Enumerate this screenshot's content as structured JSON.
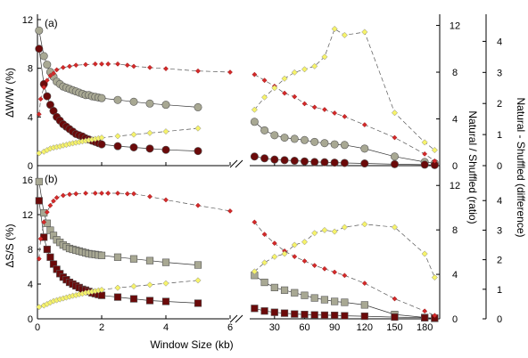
{
  "chart_data": {
    "type": "scatter",
    "xlabel": "Window Size (kb)",
    "x_ticks_left": [
      "0",
      "2",
      "4",
      "6"
    ],
    "x_ticks_right": [
      "30",
      "60",
      "90",
      "120",
      "150",
      "180"
    ],
    "x_ticks_right_top": [
      "30",
      "60",
      "90",
      "120",
      "150",
      "180"
    ],
    "left_x_range": [
      0,
      6
    ],
    "right_x_range": [
      7,
      195
    ],
    "right_axis_label_1": "Natural / Shuffled  (ratio)",
    "right_axis_label_2": "Natural - Shuffled  (difference)",
    "colors": {
      "grey_circle": "#a8a893",
      "dark_red": "#6b0a0a",
      "red": "#d42a2a",
      "yellow": "#f6f36a"
    },
    "panels": [
      {
        "label": "(a)",
        "ylabel": "ΔW/W  (%)",
        "ylim": [
          0,
          12
        ],
        "yticks": [
          "0",
          "4",
          "8",
          "12"
        ],
        "ratio_ticks": [
          "0",
          "4",
          "8",
          "12"
        ],
        "ratio_range": [
          0,
          12.5
        ],
        "diff_ticks": [
          "0",
          "1",
          "2",
          "3",
          "4"
        ],
        "diff_range": [
          0,
          4.7
        ],
        "series": [
          {
            "marker": "circle",
            "color": "grey",
            "left_x": [
              0.05,
              0.2,
              0.3,
              0.4,
              0.5,
              0.6,
              0.7,
              0.8,
              0.9,
              1.0,
              1.1,
              1.2,
              1.3,
              1.4,
              1.5,
              1.6,
              1.7,
              1.8,
              1.9,
              2.0,
              2.5,
              3.0,
              3.5,
              4.0,
              5.0
            ],
            "left_y": [
              11.1,
              9.0,
              8.3,
              7.7,
              7.3,
              6.9,
              6.7,
              6.5,
              6.4,
              6.3,
              6.2,
              6.1,
              6.0,
              5.9,
              5.8,
              5.8,
              5.7,
              5.65,
              5.6,
              5.55,
              5.4,
              5.25,
              5.1,
              5.0,
              4.8
            ],
            "right_x": [
              10,
              20,
              30,
              40,
              50,
              60,
              70,
              80,
              90,
              100,
              120,
              150,
              180,
              190
            ],
            "right_y": [
              3.6,
              2.9,
              2.5,
              2.3,
              2.2,
              2.1,
              1.95,
              1.85,
              1.75,
              1.7,
              1.4,
              0.75,
              0.3,
              0.2
            ]
          },
          {
            "marker": "circle",
            "color": "dark_red",
            "left_x": [
              0.05,
              0.2,
              0.3,
              0.4,
              0.5,
              0.6,
              0.7,
              0.8,
              0.9,
              1.0,
              1.1,
              1.2,
              1.3,
              1.4,
              1.5,
              1.6,
              1.7,
              1.8,
              1.9,
              2.0,
              2.5,
              3.0,
              3.5,
              4.0,
              5.0
            ],
            "left_y": [
              9.6,
              6.7,
              5.7,
              5.0,
              4.5,
              4.0,
              3.7,
              3.4,
              3.2,
              3.0,
              2.8,
              2.6,
              2.5,
              2.4,
              2.25,
              2.15,
              2.05,
              1.95,
              1.85,
              1.75,
              1.6,
              1.5,
              1.4,
              1.3,
              1.2
            ],
            "right_x": [
              10,
              20,
              30,
              40,
              50,
              60,
              70,
              80,
              90,
              100,
              120,
              150,
              180,
              190
            ],
            "right_y": [
              0.75,
              0.6,
              0.5,
              0.45,
              0.4,
              0.35,
              0.3,
              0.28,
              0.25,
              0.22,
              0.18,
              0.12,
              0.08,
              0.05
            ]
          },
          {
            "marker": "diamond",
            "color": "red",
            "scale": "ratio",
            "left_x": [
              0.05,
              0.1,
              0.2,
              0.3,
              0.4,
              0.5,
              0.6,
              0.8,
              1.0,
              1.2,
              1.5,
              1.8,
              2.0,
              2.2,
              2.5,
              2.8,
              3.0,
              3.5,
              4.0,
              5.0,
              6.0
            ],
            "left_y": [
              4.4,
              5.7,
              6.7,
              7.3,
              7.7,
              7.9,
              8.2,
              8.4,
              8.5,
              8.6,
              8.65,
              8.7,
              8.7,
              8.7,
              8.7,
              8.6,
              8.5,
              8.4,
              8.3,
              8.1,
              8.0
            ],
            "right_x": [
              10,
              20,
              30,
              40,
              50,
              60,
              70,
              80,
              90,
              100,
              120,
              150,
              180,
              190
            ],
            "right_y": [
              7.8,
              7.3,
              6.8,
              6.2,
              5.9,
              5.3,
              5.0,
              4.8,
              4.5,
              4.2,
              3.5,
              2.4,
              1.0,
              0.4
            ]
          },
          {
            "marker": "diamond",
            "color": "yellow",
            "scale": "diff",
            "left_x": [
              0.05,
              0.2,
              0.3,
              0.4,
              0.5,
              0.6,
              0.7,
              0.8,
              0.9,
              1.0,
              1.1,
              1.2,
              1.3,
              1.4,
              1.5,
              1.6,
              1.7,
              1.8,
              1.9,
              2.0,
              2.5,
              3.0,
              3.5,
              4.0,
              5.0
            ],
            "left_y": [
              0.4,
              0.45,
              0.5,
              0.55,
              0.58,
              0.6,
              0.62,
              0.65,
              0.67,
              0.7,
              0.72,
              0.74,
              0.76,
              0.78,
              0.8,
              0.82,
              0.84,
              0.86,
              0.88,
              0.9,
              0.95,
              1.0,
              1.05,
              1.1,
              1.2
            ],
            "right_x": [
              10,
              20,
              30,
              40,
              50,
              60,
              70,
              80,
              90,
              100,
              120,
              150,
              180,
              190
            ],
            "right_y": [
              1.8,
              2.2,
              2.5,
              2.8,
              3.0,
              3.1,
              3.2,
              3.5,
              4.4,
              4.2,
              4.3,
              1.7,
              0.75,
              0.5
            ]
          }
        ]
      },
      {
        "label": "(b)",
        "ylabel": "ΔS/S  (%)",
        "ylim": [
          0,
          16
        ],
        "yticks": [
          "0",
          "4",
          "8",
          "12",
          "16"
        ],
        "ratio_ticks": [
          "0",
          "4",
          "8",
          "12"
        ],
        "ratio_range": [
          0,
          12.5
        ],
        "diff_ticks": [
          "0",
          "1",
          "2",
          "3",
          "4"
        ],
        "diff_range": [
          0,
          4.7
        ],
        "series": [
          {
            "marker": "square",
            "color": "grey",
            "left_x": [
              0.05,
              0.2,
              0.3,
              0.4,
              0.5,
              0.6,
              0.7,
              0.8,
              0.9,
              1.0,
              1.1,
              1.2,
              1.3,
              1.4,
              1.5,
              1.6,
              1.7,
              1.8,
              1.9,
              2.0,
              2.5,
              3.0,
              3.5,
              4.0,
              5.0
            ],
            "left_y": [
              15.8,
              12.2,
              11.0,
              10.2,
              9.6,
              9.1,
              8.8,
              8.5,
              8.3,
              8.1,
              8.0,
              7.9,
              7.8,
              7.7,
              7.6,
              7.5,
              7.45,
              7.4,
              7.35,
              7.3,
              7.1,
              6.9,
              6.7,
              6.5,
              6.2
            ],
            "right_x": [
              10,
              20,
              30,
              40,
              50,
              60,
              70,
              80,
              90,
              100,
              120,
              150,
              180,
              190
            ],
            "right_y": [
              5.0,
              4.2,
              3.6,
              3.3,
              3.0,
              2.7,
              2.4,
              2.2,
              2.0,
              1.9,
              1.6,
              0.5,
              0.15,
              0.05
            ]
          },
          {
            "marker": "square",
            "color": "dark_red",
            "left_x": [
              0.05,
              0.2,
              0.3,
              0.4,
              0.5,
              0.6,
              0.7,
              0.8,
              0.9,
              1.0,
              1.1,
              1.2,
              1.3,
              1.4,
              1.5,
              1.6,
              1.7,
              1.8,
              1.9,
              2.0,
              2.5,
              3.0,
              3.5,
              4.0,
              5.0
            ],
            "left_y": [
              13.6,
              9.4,
              8.0,
              7.1,
              6.3,
              5.7,
              5.2,
              4.8,
              4.5,
              4.2,
              4.0,
              3.8,
              3.6,
              3.4,
              3.3,
              3.15,
              3.0,
              2.9,
              2.8,
              2.7,
              2.5,
              2.3,
              2.1,
              2.0,
              1.8
            ],
            "right_x": [
              10,
              20,
              30,
              40,
              50,
              60,
              70,
              80,
              90,
              100,
              120,
              150,
              180,
              190
            ],
            "right_y": [
              1.2,
              0.9,
              0.75,
              0.65,
              0.55,
              0.5,
              0.45,
              0.42,
              0.4,
              0.35,
              0.3,
              0.2,
              0.12,
              0.08
            ]
          },
          {
            "marker": "diamond",
            "color": "red",
            "scale": "ratio",
            "left_x": [
              0.05,
              0.1,
              0.2,
              0.3,
              0.4,
              0.5,
              0.6,
              0.8,
              1.0,
              1.2,
              1.5,
              1.8,
              2.0,
              2.2,
              2.5,
              2.8,
              3.0,
              3.5,
              4.0,
              5.0,
              6.0
            ],
            "left_y": [
              5.4,
              7.2,
              8.7,
              9.6,
              10.2,
              10.6,
              10.9,
              11.1,
              11.2,
              11.25,
              11.3,
              11.3,
              11.3,
              11.3,
              11.3,
              11.25,
              11.25,
              11.0,
              10.7,
              10.2,
              9.7
            ],
            "right_x": [
              10,
              20,
              30,
              40,
              50,
              60,
              70,
              80,
              90,
              100,
              120,
              150,
              180,
              190
            ],
            "right_y": [
              8.7,
              7.6,
              6.8,
              6.1,
              5.6,
              5.2,
              4.8,
              4.5,
              4.2,
              3.9,
              3.2,
              1.8,
              0.7,
              0.3
            ]
          },
          {
            "marker": "diamond",
            "color": "yellow",
            "scale": "diff",
            "left_x": [
              0.05,
              0.2,
              0.3,
              0.4,
              0.5,
              0.6,
              0.7,
              0.8,
              0.9,
              1.0,
              1.1,
              1.2,
              1.3,
              1.4,
              1.5,
              1.6,
              1.7,
              1.8,
              1.9,
              2.0,
              2.5,
              3.0,
              3.5,
              4.0,
              5.0
            ],
            "left_y": [
              0.4,
              0.45,
              0.5,
              0.55,
              0.6,
              0.63,
              0.66,
              0.69,
              0.72,
              0.75,
              0.78,
              0.8,
              0.83,
              0.85,
              0.88,
              0.9,
              0.92,
              0.94,
              0.96,
              0.98,
              1.05,
              1.1,
              1.15,
              1.2,
              1.3
            ],
            "right_x": [
              10,
              20,
              30,
              40,
              50,
              60,
              70,
              80,
              90,
              100,
              120,
              150,
              180,
              190
            ],
            "right_y": [
              1.6,
              1.9,
              2.1,
              2.2,
              2.5,
              2.6,
              2.9,
              3.0,
              2.95,
              3.1,
              3.2,
              3.1,
              2.2,
              1.4
            ]
          }
        ]
      }
    ]
  }
}
